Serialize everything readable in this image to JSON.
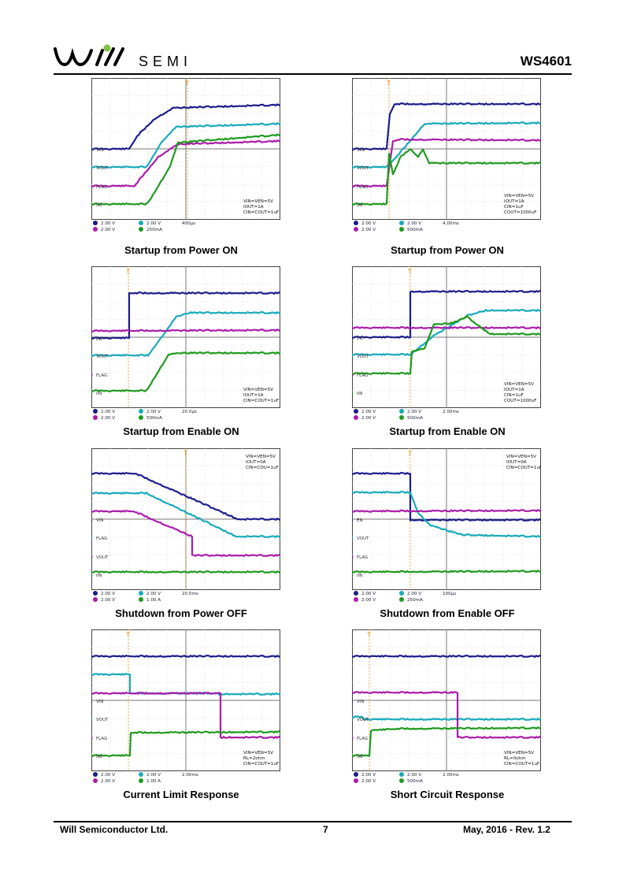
{
  "header": {
    "logo_text": "SEMI",
    "part_number": "WS4601"
  },
  "footer": {
    "company": "Will Semiconductor Ltd.",
    "page": "7",
    "date_rev": "May, 2016 - Rev. 1.2"
  },
  "colors": {
    "ch1": "#1c1c8c",
    "ch2": "#18aaba",
    "ch3": "#aa1caa",
    "ch4": "#1f9a1f",
    "logo_dot": "#7dc242"
  },
  "scopes": [
    {
      "caption": "Startup from Power ON",
      "labels": [
        "VIN",
        "VOUT",
        "FLAG",
        "IIN"
      ],
      "cond": [
        "VIN=VEN=5V",
        "IOUT=1A",
        "CIN=COUT=1uF"
      ],
      "ch1": "2.00 V",
      "ch2": "2.00 V",
      "ch3": "2.00 V",
      "ch4": "250mA",
      "time": "400µs"
    },
    {
      "caption": "Startup from Power ON",
      "labels": [
        "VIN",
        "VOUT",
        "FLAG",
        "IIN"
      ],
      "cond": [
        "VIN=VEN=5V",
        "IOUT=1A",
        "CIN=1uF",
        "COUT=1000uF"
      ],
      "ch1": "2.00 V",
      "ch2": "2.00 V",
      "ch3": "2.00 V",
      "ch4": "500mA",
      "time": "4.00ms"
    },
    {
      "caption": "Startup from Enable ON",
      "labels": [
        "EN",
        "VOUT",
        "FLAG",
        "IIN"
      ],
      "cond": [
        "VIN=VEN=5V",
        "IOUT=1A",
        "CIN=COUT=1uF"
      ],
      "ch1": "2.00 V",
      "ch2": "2.00 V",
      "ch3": "2.00 V",
      "ch4": "500mA",
      "time": "20.0µs"
    },
    {
      "caption": "Startup from Enable ON",
      "labels": [
        "EN",
        "VOUT",
        "FLAG",
        "IIN"
      ],
      "cond": [
        "VIN=VEN=5V",
        "IOUT=1A",
        "CIN=1uF",
        "COUT=1000uF"
      ],
      "ch1": "2.00 V",
      "ch2": "2.00 V",
      "ch3": "2.00 V",
      "ch4": "500mA",
      "time": "2.00ms"
    },
    {
      "caption": "Shutdown from Power OFF",
      "labels": [
        "VIN",
        "FLAG",
        "VOUT",
        "IIN"
      ],
      "cond": [
        "VIN=VEN=5V",
        "IOUT=0A",
        "CIN=COU=1uF"
      ],
      "ch1": "2.00 V",
      "ch2": "2.00 V",
      "ch3": "2.00 V",
      "ch4": "1.00 A",
      "time": "20.0ms"
    },
    {
      "caption": "Shutdown from Enable OFF",
      "labels": [
        "EN",
        "VOUT",
        "FLAG",
        "IIN"
      ],
      "cond": [
        "VIN=VEN=5V",
        "IOUT=0A",
        "CIN=COUT=1uF"
      ],
      "ch1": "2.00 V",
      "ch2": "2.00 V",
      "ch3": "2.00 V",
      "ch4": "250mA",
      "time": "100µs"
    },
    {
      "caption": "Current Limit Response",
      "labels": [
        "VIN",
        "VOUT",
        "FLAG",
        "IIN"
      ],
      "cond": [
        "VIN=VEN=5V",
        "RL=2ohm",
        "CIN=COUT=1uF"
      ],
      "ch1": "2.00 V",
      "ch2": "2.00 V",
      "ch3": "2.00 V",
      "ch4": "1.00 A",
      "time": "2.00ms"
    },
    {
      "caption": "Short Circuit Response",
      "labels": [
        "VIN",
        "VOUT",
        "FLAG",
        "IIN"
      ],
      "cond": [
        "VIN=VEN=5V",
        "RL=0ohm",
        "CIN=COUT=1uF"
      ],
      "ch1": "2.00 V",
      "ch2": "2.00 V",
      "ch3": "2.00 V",
      "ch4": "500mA",
      "time": "2.00ms"
    }
  ]
}
